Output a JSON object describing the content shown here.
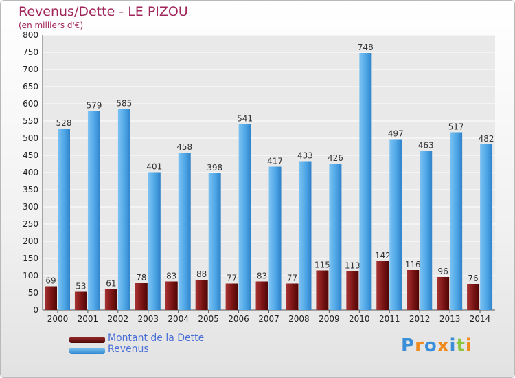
{
  "title": "Revenus/Dette - LE PIZOU",
  "subtitle": "(en milliers d'€)",
  "legend": {
    "debt_label": "Montant de la Dette",
    "revenue_label": "Revenus"
  },
  "logo": {
    "text": [
      "P",
      "r",
      "o",
      "x",
      "i",
      "t",
      "i"
    ]
  },
  "colors": {
    "debt": "#8b1c1c",
    "revenue": "#4ea6e6",
    "title": "#a0255a",
    "legend_text": "#4a6fd6"
  },
  "chart_data": {
    "type": "bar",
    "title": "Revenus/Dette - LE PIZOU",
    "subtitle": "(en milliers d'€)",
    "xlabel": "",
    "ylabel": "",
    "ylim": [
      0,
      800
    ],
    "yticks": [
      0,
      50,
      100,
      150,
      200,
      250,
      300,
      350,
      400,
      450,
      500,
      550,
      600,
      650,
      700,
      750,
      800
    ],
    "grid": true,
    "legend_position": "bottom-left",
    "categories": [
      "2000",
      "2001",
      "2002",
      "2003",
      "2004",
      "2005",
      "2006",
      "2007",
      "2008",
      "2009",
      "2010",
      "2011",
      "2012",
      "2013",
      "2014"
    ],
    "series": [
      {
        "name": "Montant de la Dette",
        "values": [
          69,
          53,
          61,
          78,
          83,
          88,
          77,
          83,
          77,
          115,
          113,
          142,
          116,
          96,
          76
        ]
      },
      {
        "name": "Revenus",
        "values": [
          528,
          579,
          585,
          401,
          458,
          398,
          541,
          417,
          433,
          426,
          748,
          497,
          463,
          517,
          482
        ]
      }
    ]
  }
}
